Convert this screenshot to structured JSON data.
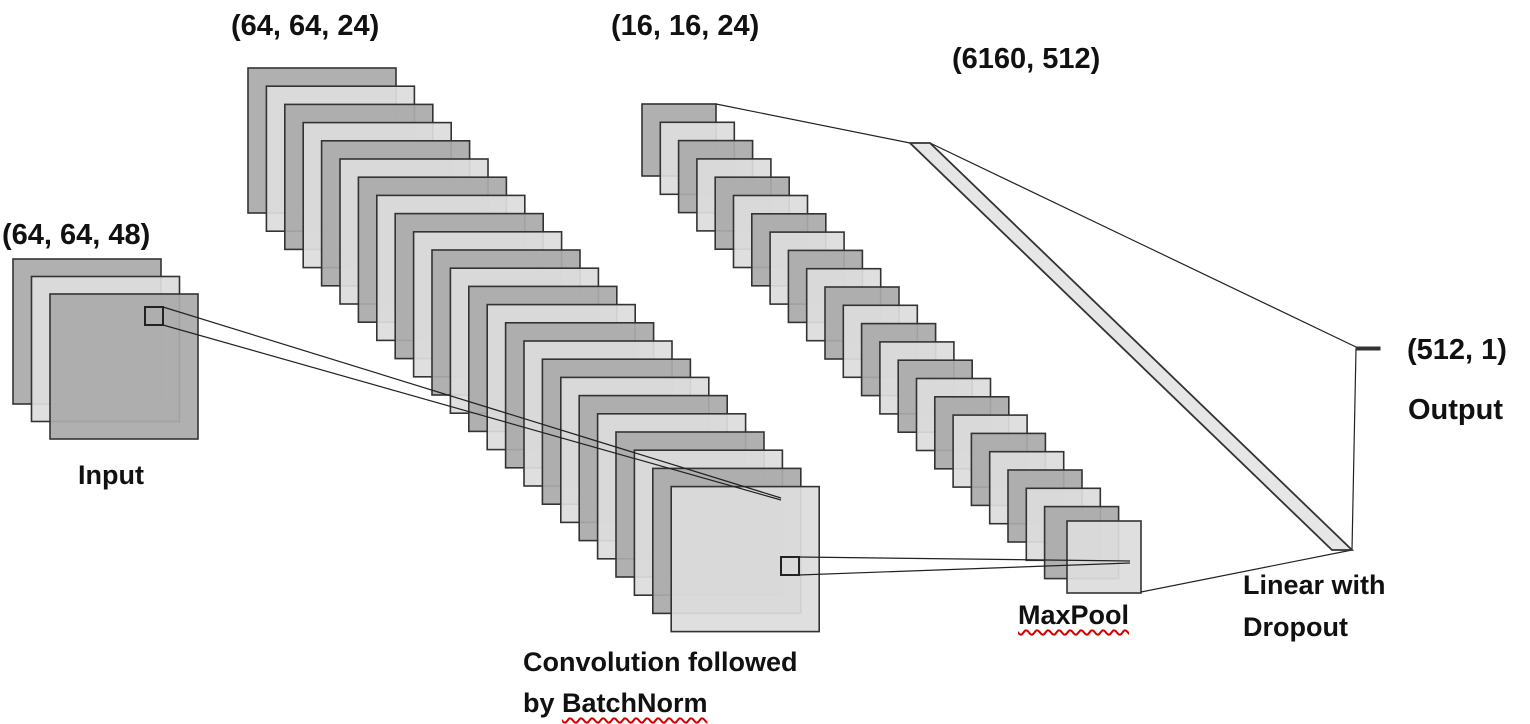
{
  "labels": {
    "input_dims": "(64, 64, 48)",
    "conv_dims": "(64, 64, 24)",
    "pool_dims": "(16, 16, 24)",
    "linear_dims": "(6160, 512)",
    "output_dims": "(512, 1)",
    "input": "Input",
    "conv_line1": "Convolution followed",
    "conv_line2_prefix": "by ",
    "conv_line2_word": "BatchNorm",
    "maxpool": "MaxPool",
    "linear_line1": "Linear with",
    "linear_line2": "Dropout",
    "output": "Output"
  },
  "colors": {
    "dark_fill": "#aaaaaa",
    "light_fill": "#dddddd",
    "stroke": "#333333",
    "line": "#222222",
    "spellcheck": "#d40000"
  }
}
